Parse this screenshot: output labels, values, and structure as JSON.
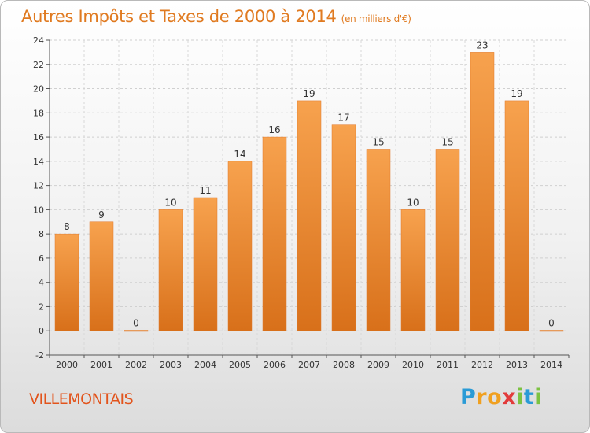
{
  "header": {
    "title": "Autres Impôts et Taxes de 2000 à 2014",
    "subtitle": "(en milliers d'€)"
  },
  "footer": {
    "commune": "VILLEMONTAIS",
    "logo_letters": [
      "P",
      "r",
      "o",
      "x",
      "i",
      "t",
      "i"
    ],
    "logo_colors": [
      "#2a9bd6",
      "#f0a020",
      "#f0a020",
      "#e23b3b",
      "#7cc242",
      "#2a9bd6",
      "#7cc242"
    ]
  },
  "chart_data": {
    "type": "bar",
    "categories": [
      "2000",
      "2001",
      "2002",
      "2003",
      "2004",
      "2005",
      "2006",
      "2007",
      "2008",
      "2009",
      "2010",
      "2011",
      "2012",
      "2013",
      "2014"
    ],
    "values": [
      8,
      9,
      0,
      10,
      11,
      14,
      16,
      19,
      17,
      15,
      10,
      15,
      23,
      19,
      0
    ],
    "data_labels": [
      "8",
      "9",
      "0",
      "10",
      "11",
      "14",
      "16",
      "19",
      "17",
      "15",
      "10",
      "15",
      "23",
      "19",
      "0"
    ],
    "yticks": [
      -2,
      0,
      2,
      4,
      6,
      8,
      10,
      12,
      14,
      16,
      18,
      20,
      22,
      24
    ],
    "ylim": [
      -2,
      24
    ],
    "grid": true,
    "bar_color": "#f08a2c",
    "axis_color": "#555555"
  }
}
